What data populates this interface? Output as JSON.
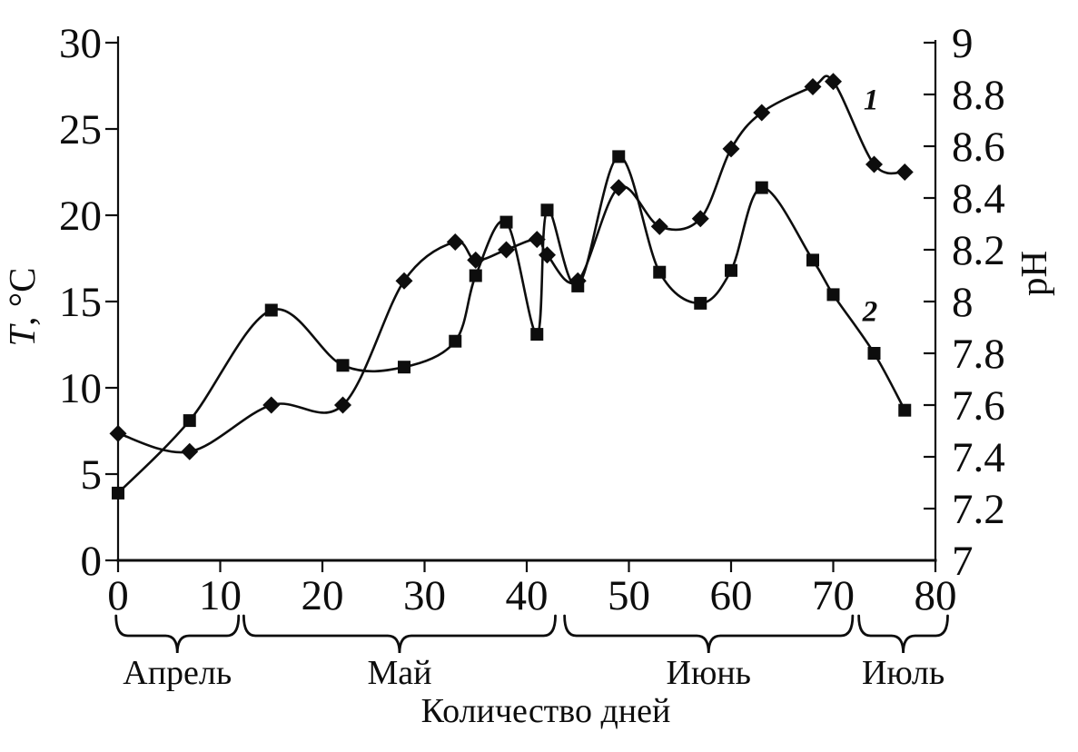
{
  "figure": {
    "background": "#ffffff",
    "ink_color": "#0d0d0d"
  },
  "chart_data": {
    "type": "line",
    "title": "",
    "xlabel": "Количество дней",
    "ylabel_left_variable": "T",
    "ylabel_left_unit": ", °C",
    "ylabel_right": "pH",
    "grid": false,
    "legend_position": "inline curve numbers",
    "xlim": [
      0,
      80
    ],
    "x_ticks": [
      0,
      10,
      20,
      30,
      40,
      50,
      60,
      70,
      80
    ],
    "ylim_left": [
      0,
      30
    ],
    "y_ticks_left": [
      0,
      5,
      10,
      15,
      20,
      25,
      30
    ],
    "ylim_right": [
      7,
      9
    ],
    "y_ticks_right": [
      7,
      7.2,
      7.4,
      7.6,
      7.8,
      8,
      8.2,
      8.4,
      8.6,
      8.8,
      9
    ],
    "x": [
      0,
      7,
      15,
      22,
      28,
      33,
      35,
      38,
      41,
      42,
      45,
      49,
      53,
      57,
      60,
      63,
      68,
      70,
      74,
      77
    ],
    "series": [
      {
        "name": "1",
        "curve_label": "1",
        "quantity": "pH",
        "axis": "right",
        "marker": "diamond",
        "values": [
          7.49,
          7.42,
          7.6,
          7.6,
          8.08,
          8.23,
          8.16,
          8.2,
          8.24,
          8.18,
          8.08,
          8.44,
          8.29,
          8.32,
          8.59,
          8.73,
          8.83,
          8.85,
          8.53,
          8.5
        ],
        "label_pos": {
          "day": 73.7,
          "value": 8.78
        }
      },
      {
        "name": "2",
        "curve_label": "2",
        "quantity": "T, °C",
        "axis": "left",
        "marker": "square",
        "values": [
          3.9,
          8.1,
          14.5,
          11.3,
          11.2,
          12.7,
          16.5,
          19.6,
          13.1,
          20.3,
          15.9,
          23.4,
          16.7,
          14.9,
          16.8,
          21.6,
          17.4,
          15.4,
          12.0,
          8.7
        ],
        "label_pos": {
          "day": 73.6,
          "value": 14.45
        }
      }
    ],
    "month_brackets": [
      {
        "label": "Апрель",
        "from": -0.2,
        "to": 11.8
      },
      {
        "label": "Май",
        "from": 12.3,
        "to": 42.8
      },
      {
        "label": "Июнь",
        "from": 43.7,
        "to": 71.9
      },
      {
        "label": "Июль",
        "from": 72.5,
        "to": 81.2
      }
    ]
  }
}
